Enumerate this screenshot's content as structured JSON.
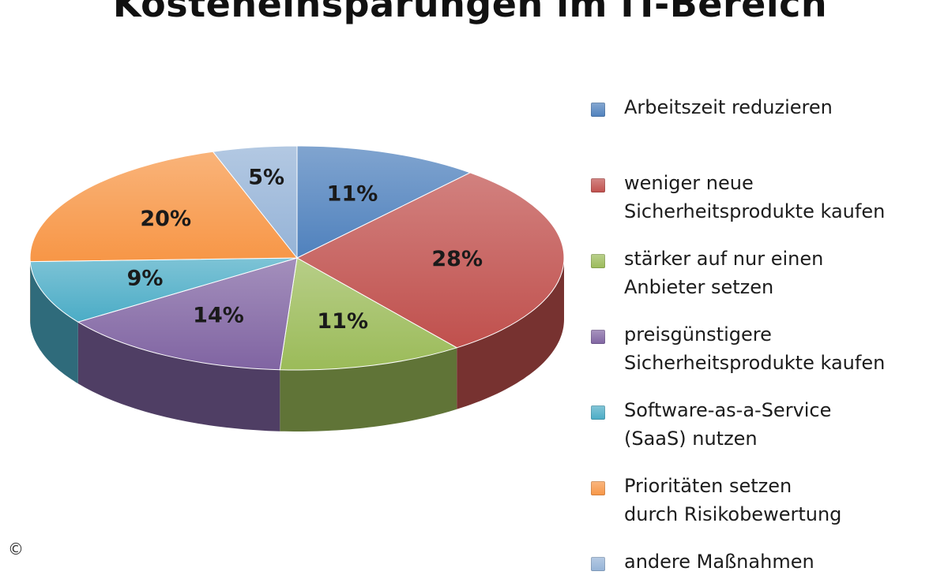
{
  "chart_data": {
    "type": "pie",
    "title": "Kosteneinsparungen im IT-Bereich",
    "slices": [
      {
        "label": "Arbeitszeit reduzieren",
        "value": 11,
        "display": "11%",
        "color": "#4f81bd"
      },
      {
        "label": "weniger neue Sicherheitsprodukte kaufen",
        "value": 28,
        "display": "28%",
        "color": "#c0504d"
      },
      {
        "label": "stärker auf nur einen Anbieter setzen",
        "value": 11,
        "display": "11%",
        "color": "#9bbb59"
      },
      {
        "label": "preisgünstigere Sicherheitsprodukte kaufen",
        "value": 14,
        "display": "14%",
        "color": "#8064a2"
      },
      {
        "label": "Software-as-a-Service (SaaS) nutzen",
        "value": 9,
        "display": "9%",
        "color": "#4bacc6"
      },
      {
        "label": "Prioritäten setzen durch Risikobewertung",
        "value": 20,
        "display": "20%",
        "color": "#f79646"
      },
      {
        "label": "andere Maßnahmen",
        "value": 5,
        "display": "5%",
        "color": "#95b3d7"
      }
    ],
    "legend": {
      "placement": "right",
      "entries": [
        [
          "Arbeitszeit reduzieren"
        ],
        [
          "weniger neue",
          "Sicherheitsprodukte kaufen"
        ],
        [
          "stärker auf nur einen",
          "Anbieter setzen"
        ],
        [
          "preisgünstigere",
          "Sicherheitsprodukte kaufen"
        ],
        [
          "Software-as-a-Service",
          "(SaaS) nutzen"
        ],
        [
          "Prioritäten setzen",
          "durch Risikobewertung"
        ],
        [
          "andere Maßnahmen"
        ]
      ]
    },
    "style": "3d-pie"
  },
  "footer": {
    "copyright_icon": "copyright-icon",
    "copyright_symbol": "©"
  }
}
